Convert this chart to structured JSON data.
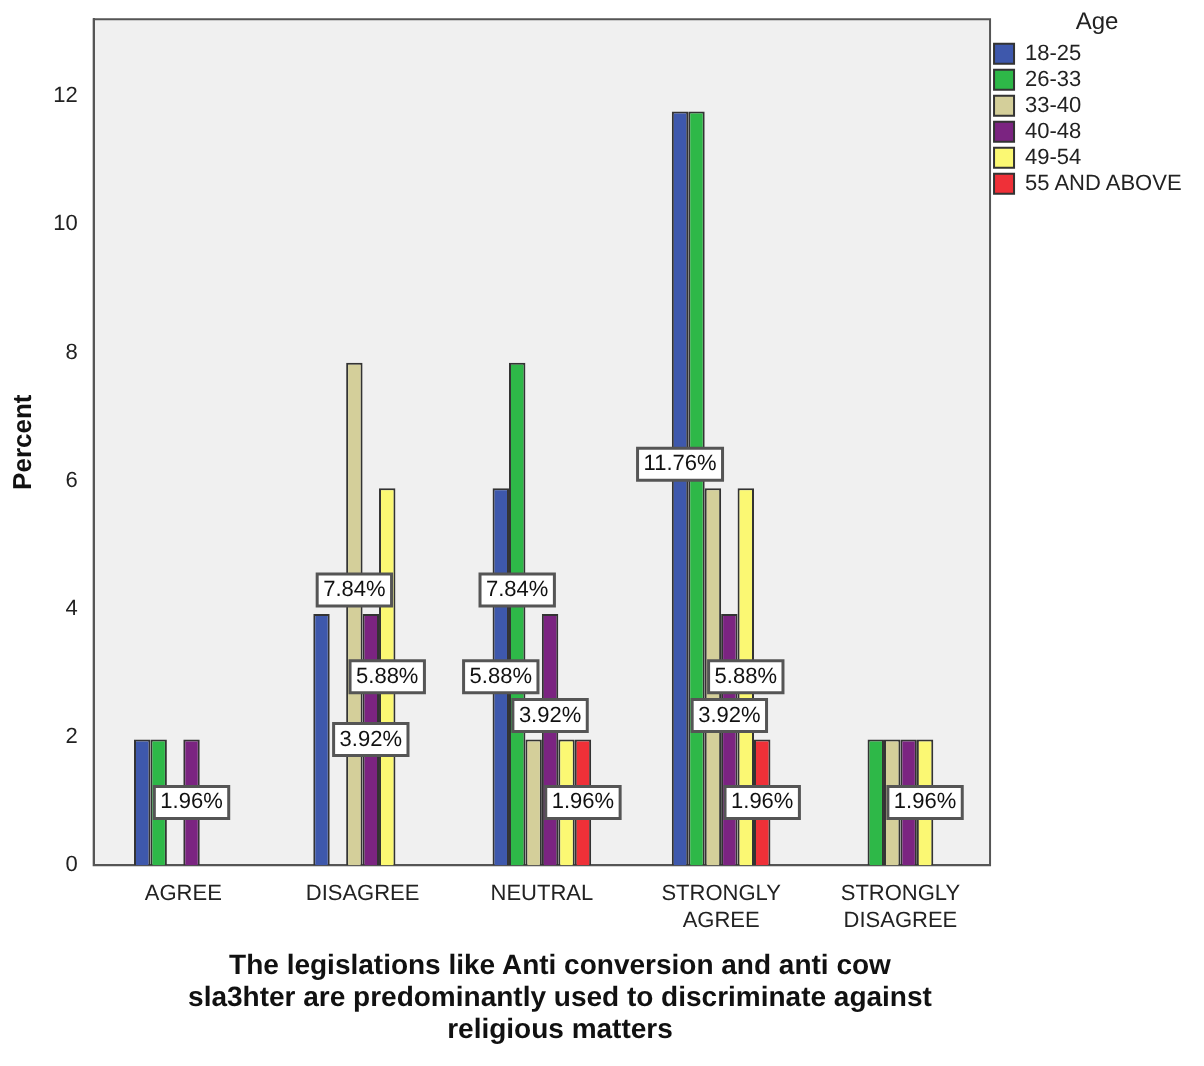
{
  "chart_data": {
    "type": "bar",
    "xlabel": "The legislations like Anti conversion and anti cow sla3hter are predominantly used to discriminate against religious matters",
    "ylabel": "Percent",
    "legend_title": "Age",
    "legend": "top right",
    "categories": [
      "AGREE",
      "DISAGREE",
      "NEUTRAL",
      "STRONGLY AGREE",
      "STRONGLY DISAGREE"
    ],
    "ylim": [
      0,
      13.2
    ],
    "yticks": [
      0,
      2,
      4,
      6,
      8,
      10,
      12
    ],
    "grid": false,
    "series": [
      {
        "name": "18-25",
        "color": "#3e58ac",
        "values": [
          1.96,
          3.92,
          5.88,
          11.76,
          0
        ],
        "value_labels": [
          null,
          null,
          "5.88%",
          "11.76%",
          null
        ]
      },
      {
        "name": "26-33",
        "color": "#2eb848",
        "values": [
          1.96,
          0,
          7.84,
          11.76,
          1.96
        ],
        "value_labels": [
          null,
          null,
          "7.84%",
          null,
          null
        ]
      },
      {
        "name": "33-40",
        "color": "#d4cf9a",
        "values": [
          0,
          7.84,
          1.96,
          5.88,
          1.96
        ],
        "value_labels": [
          null,
          "7.84%",
          null,
          null,
          null
        ]
      },
      {
        "name": "40-48",
        "color": "#7b2481",
        "values": [
          1.96,
          3.92,
          3.92,
          3.92,
          1.96
        ],
        "value_labels": [
          "1.96%",
          "3.92%",
          "3.92%",
          "3.92%",
          null
        ]
      },
      {
        "name": "49-54",
        "color": "#fbf873",
        "values": [
          0,
          5.88,
          1.96,
          5.88,
          1.96
        ],
        "value_labels": [
          null,
          "5.88%",
          null,
          "5.88%",
          "1.96%"
        ]
      },
      {
        "name": "55 AND ABOVE",
        "color": "#ef3038",
        "values": [
          0,
          0,
          1.96,
          1.96,
          0
        ],
        "value_labels": [
          null,
          null,
          "1.96%",
          "1.96%",
          null
        ]
      }
    ]
  }
}
